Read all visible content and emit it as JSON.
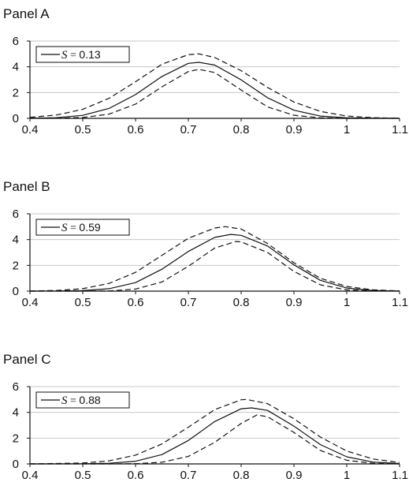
{
  "chart_data": [
    {
      "type": "line",
      "panel_label": "Panel A",
      "legend_label": "S = 0.13",
      "legend_var": "S",
      "legend_value": "0.13",
      "xlim": [
        0.4,
        1.1
      ],
      "ylim": [
        0,
        6
      ],
      "xticks": [
        "0.4",
        "0.5",
        "0.6",
        "0.7",
        "0.8",
        "0.9",
        "1",
        "1.1"
      ],
      "yticks": [
        "0",
        "2",
        "4",
        "6"
      ],
      "grid": "horizontal",
      "legend_position": "top-left",
      "series": [
        {
          "style": "solid",
          "x": [
            0.4,
            0.45,
            0.5,
            0.55,
            0.6,
            0.65,
            0.7,
            0.72,
            0.75,
            0.8,
            0.85,
            0.9,
            0.95,
            1.0,
            1.05,
            1.1
          ],
          "y": [
            0.01,
            0.05,
            0.23,
            0.77,
            1.84,
            3.25,
            4.27,
            4.35,
            4.13,
            2.99,
            1.6,
            0.63,
            0.18,
            0.04,
            0.01,
            0.0
          ]
        },
        {
          "style": "dashed",
          "x": [
            0.4,
            0.45,
            0.5,
            0.55,
            0.6,
            0.65,
            0.7,
            0.72,
            0.75,
            0.8,
            0.85,
            0.9,
            0.95,
            1.0,
            1.05,
            1.1
          ],
          "y": [
            0.08,
            0.26,
            0.7,
            1.56,
            2.84,
            4.2,
            4.94,
            5.0,
            4.72,
            3.7,
            2.4,
            1.27,
            0.54,
            0.18,
            0.05,
            0.01
          ]
        },
        {
          "style": "dashed",
          "x": [
            0.4,
            0.45,
            0.5,
            0.55,
            0.6,
            0.65,
            0.7,
            0.72,
            0.75,
            0.8,
            0.85,
            0.9,
            0.95,
            1.0,
            1.05,
            1.1
          ],
          "y": [
            0.0,
            0.01,
            0.06,
            0.33,
            1.1,
            2.44,
            3.63,
            3.8,
            3.56,
            2.2,
            0.89,
            0.24,
            0.04,
            0.0,
            0.0,
            0.0
          ]
        }
      ]
    },
    {
      "type": "line",
      "panel_label": "Panel B",
      "legend_label": "S = 0.59",
      "legend_var": "S",
      "legend_value": "0.59",
      "xlim": [
        0.4,
        1.1
      ],
      "ylim": [
        0,
        6
      ],
      "xticks": [
        "0.4",
        "0.5",
        "0.6",
        "0.7",
        "0.8",
        "0.9",
        "1",
        "1.1"
      ],
      "yticks": [
        "0",
        "2",
        "4",
        "6"
      ],
      "grid": "horizontal",
      "legend_position": "top-left",
      "series": [
        {
          "style": "solid",
          "x": [
            0.4,
            0.45,
            0.5,
            0.55,
            0.6,
            0.65,
            0.7,
            0.75,
            0.78,
            0.8,
            0.85,
            0.9,
            0.95,
            1.0,
            1.05,
            1.1
          ],
          "y": [
            0.0,
            0.01,
            0.04,
            0.19,
            0.66,
            1.7,
            3.08,
            4.17,
            4.4,
            4.33,
            3.5,
            2.04,
            0.84,
            0.24,
            0.05,
            0.01
          ]
        },
        {
          "style": "dashed",
          "x": [
            0.4,
            0.45,
            0.5,
            0.55,
            0.6,
            0.65,
            0.7,
            0.75,
            0.77,
            0.8,
            0.85,
            0.9,
            0.95,
            1.0,
            1.05,
            1.1
          ],
          "y": [
            0.01,
            0.05,
            0.19,
            0.6,
            1.46,
            2.78,
            4.1,
            4.9,
            5.0,
            4.82,
            3.7,
            2.2,
            1.0,
            0.36,
            0.1,
            0.02
          ]
        },
        {
          "style": "dashed",
          "x": [
            0.4,
            0.45,
            0.5,
            0.55,
            0.6,
            0.65,
            0.7,
            0.75,
            0.79,
            0.8,
            0.85,
            0.9,
            0.95,
            1.0,
            1.05,
            1.1
          ],
          "y": [
            0.0,
            0.0,
            0.0,
            0.02,
            0.16,
            0.71,
            1.93,
            3.34,
            3.85,
            3.82,
            3.0,
            1.53,
            0.49,
            0.1,
            0.01,
            0.0
          ]
        }
      ]
    },
    {
      "type": "line",
      "panel_label": "Panel C",
      "legend_label": "S = 0.88",
      "legend_var": "S",
      "legend_value": "0.88",
      "xlim": [
        0.4,
        1.1
      ],
      "ylim": [
        0,
        6
      ],
      "xticks": [
        "0.4",
        "0.5",
        "0.6",
        "0.7",
        "0.8",
        "0.9",
        "1",
        "1.1"
      ],
      "yticks": [
        "0",
        "2",
        "4",
        "6"
      ],
      "grid": "horizontal",
      "legend_position": "top-left",
      "series": [
        {
          "style": "solid",
          "x": [
            0.4,
            0.5,
            0.55,
            0.6,
            0.65,
            0.7,
            0.75,
            0.8,
            0.82,
            0.85,
            0.9,
            0.95,
            1.0,
            1.05,
            1.1
          ],
          "y": [
            0.0,
            0.01,
            0.05,
            0.21,
            0.72,
            1.82,
            3.29,
            4.28,
            4.35,
            4.15,
            2.93,
            1.5,
            0.55,
            0.14,
            0.03
          ]
        },
        {
          "style": "dashed",
          "x": [
            0.4,
            0.5,
            0.55,
            0.6,
            0.65,
            0.7,
            0.75,
            0.8,
            0.81,
            0.85,
            0.9,
            0.95,
            1.0,
            1.05,
            1.1
          ],
          "y": [
            0.0,
            0.07,
            0.24,
            0.68,
            1.55,
            2.85,
            4.21,
            4.98,
            5.0,
            4.68,
            3.5,
            2.09,
            1.0,
            0.38,
            0.11
          ]
        },
        {
          "style": "dashed",
          "x": [
            0.4,
            0.5,
            0.55,
            0.6,
            0.65,
            0.7,
            0.75,
            0.8,
            0.83,
            0.85,
            0.9,
            0.95,
            1.0,
            1.05,
            1.1
          ],
          "y": [
            0.0,
            0.0,
            0.0,
            0.02,
            0.13,
            0.58,
            1.68,
            3.14,
            3.8,
            3.66,
            2.44,
            1.05,
            0.28,
            0.05,
            0.0
          ]
        }
      ]
    }
  ]
}
